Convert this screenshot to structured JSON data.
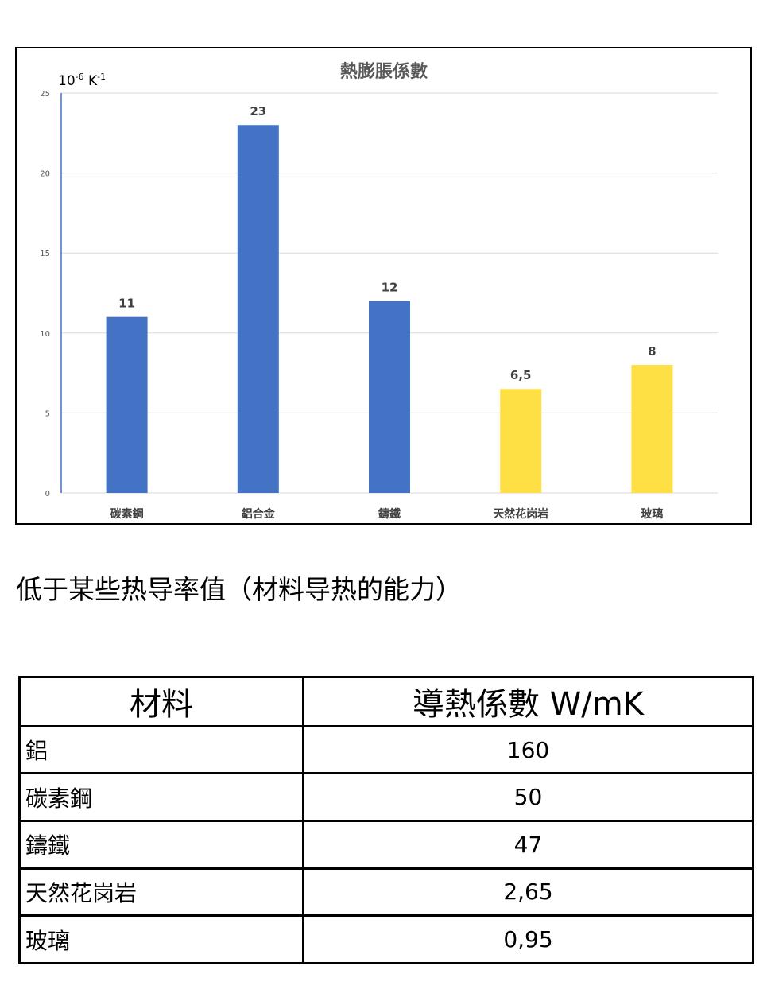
{
  "chart_data": {
    "type": "bar",
    "title": "熱膨脹係數",
    "unit_label": {
      "base": "10",
      "exp": "-6",
      "unit": " K",
      "unit_exp": "-1"
    },
    "categories": [
      "碳素鋼",
      "鋁合金",
      "鑄鐵",
      "天然花岗岩",
      "玻璃"
    ],
    "values": [
      11,
      23,
      12,
      6.5,
      8
    ],
    "value_labels": [
      "11",
      "23",
      "12",
      "6,5",
      "8"
    ],
    "colors": [
      "#4472C4",
      "#4472C4",
      "#4472C4",
      "#FFE044",
      "#FFE044"
    ],
    "ylim": [
      0,
      25
    ],
    "yticks": [
      0,
      5,
      10,
      15,
      20,
      25
    ],
    "grid": true,
    "legend": "none"
  },
  "subtitle": "低于某些热导率值（材料导热的能力）",
  "table": {
    "headers": [
      "材料",
      "導熱係數 W/mK"
    ],
    "rows": [
      {
        "material": "鋁",
        "value": "160"
      },
      {
        "material": "碳素鋼",
        "value": "50"
      },
      {
        "material": "鑄鐵",
        "value": "47"
      },
      {
        "material": "天然花岗岩",
        "value": "2,65"
      },
      {
        "material": "玻璃",
        "value": "0,95"
      }
    ]
  }
}
